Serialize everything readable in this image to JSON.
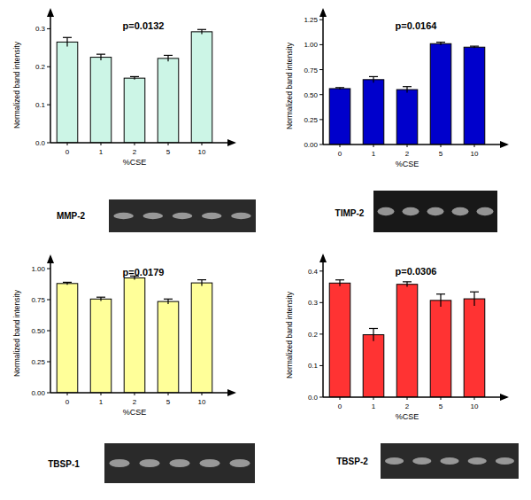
{
  "chart_data": [
    {
      "type": "bar",
      "title": "p=0.0132",
      "x_label": "%CSE",
      "y_label": "Normalized band intensity",
      "categories": [
        "0",
        "1",
        "2",
        "5",
        "10"
      ],
      "values": [
        0.265,
        0.225,
        0.17,
        0.222,
        0.292
      ],
      "errors": [
        0.012,
        0.008,
        0.004,
        0.008,
        0.006
      ],
      "color": "#ccf5e6",
      "ylim": [
        0,
        0.35
      ],
      "yticks": [
        {
          "value": 0,
          "label": "0.0"
        },
        0.1,
        0.2,
        0.3
      ],
      "annotations": [
        "MMP-2"
      ]
    },
    {
      "type": "bar",
      "title": "p=0.0164",
      "x_label": "%CSE",
      "y_label": "Normalized band intensity",
      "categories": [
        "0",
        "1",
        "2",
        "5",
        "10"
      ],
      "values": [
        0.56,
        0.65,
        0.55,
        1.01,
        0.975
      ],
      "errors": [
        0.01,
        0.03,
        0.03,
        0.015,
        0.01
      ],
      "color": "#0000cc",
      "ylim": [
        0,
        1.35
      ],
      "yticks": [
        {
          "value": 0,
          "label": "0.00"
        },
        0.25,
        {
          "value": 0.5,
          "label": "0.50"
        },
        0.75,
        {
          "value": 1,
          "label": "1.00"
        },
        1.25
      ],
      "annotations": [
        "TIMP-2"
      ]
    },
    {
      "type": "bar",
      "title": "p=0.0179",
      "x_label": "%CSE",
      "y_label": "Normalized band intensity",
      "categories": [
        "0",
        "1",
        "2",
        "5",
        "10"
      ],
      "values": [
        0.88,
        0.755,
        0.925,
        0.735,
        0.885
      ],
      "errors": [
        0.01,
        0.015,
        0.015,
        0.02,
        0.025
      ],
      "color": "#ffff99",
      "ylim": [
        0,
        1.1
      ],
      "yticks": [
        {
          "value": 0,
          "label": "0.00"
        },
        0.25,
        {
          "value": 0.5,
          "label": "0.50"
        },
        0.75,
        {
          "value": 1,
          "label": "1.00"
        }
      ],
      "annotations": [
        "TBSP-1"
      ]
    },
    {
      "type": "bar",
      "title": "p=0.0306",
      "x_label": "%CSE",
      "y_label": "Normalized band intensity",
      "categories": [
        "0",
        "1",
        "2",
        "5",
        "10"
      ],
      "values": [
        0.362,
        0.198,
        0.358,
        0.307,
        0.312
      ],
      "errors": [
        0.01,
        0.02,
        0.008,
        0.02,
        0.022
      ],
      "color": "#ff3333",
      "ylim": [
        0,
        0.45
      ],
      "yticks": [
        {
          "value": 0,
          "label": "0.0"
        },
        0.1,
        0.2,
        0.3,
        0.4
      ],
      "annotations": [
        "TBSP-2"
      ]
    }
  ]
}
